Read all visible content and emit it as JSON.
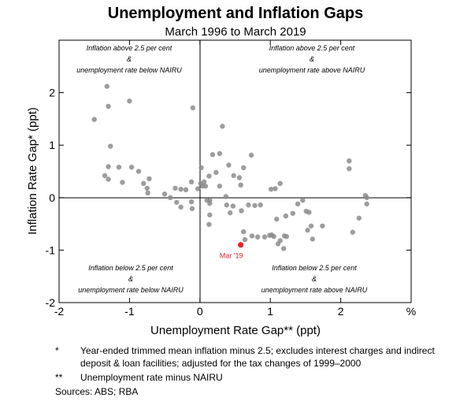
{
  "chart_data": {
    "type": "scatter",
    "title": "Unemployment and Inflation Gaps",
    "subtitle": "March 1996 to March 2019",
    "xlabel": "Unemployment Rate Gap** (ppt)",
    "ylabel": "Inflation Rate Gap* (ppt)",
    "x_unit": "%",
    "xlim": [
      -2,
      3
    ],
    "ylim": [
      -2,
      3
    ],
    "x_ticks": [
      "-2",
      "-1",
      "0",
      "1",
      "2"
    ],
    "y_ticks": [
      "-2",
      "-1",
      "0",
      "1",
      "2"
    ],
    "grid": false,
    "point_color": "#8c8c8c",
    "highlight_color": "#e0242f",
    "quadrant_labels": {
      "top_left": [
        "Inflation above 2.5 per cent",
        "&",
        "unemployment rate below NAIRU"
      ],
      "top_right": [
        "Inflation above 2.5 per cent",
        "&",
        "unemployment rate above NAIRU"
      ],
      "bottom_left": [
        "Inflation below 2.5 per cent",
        "&",
        "unemployment rate below NAIRU"
      ],
      "bottom_right": [
        "Inflation below 2.5 per cent",
        "&",
        "unemployment rate above NAIRU"
      ]
    },
    "highlight": {
      "label": "Mar '19",
      "x": 0.58,
      "y": -0.9
    },
    "points": [
      [
        -1.32,
        2.12
      ],
      [
        -1.3,
        1.74
      ],
      [
        -1.0,
        1.84
      ],
      [
        -1.5,
        1.49
      ],
      [
        -1.27,
        0.98
      ],
      [
        -0.1,
        1.71
      ],
      [
        -1.35,
        0.42
      ],
      [
        -1.3,
        0.35
      ],
      [
        -1.15,
        0.58
      ],
      [
        -1.3,
        0.59
      ],
      [
        -1.1,
        0.29
      ],
      [
        -0.97,
        0.58
      ],
      [
        -0.87,
        0.5
      ],
      [
        -0.8,
        0.27
      ],
      [
        -0.72,
        0.36
      ],
      [
        -0.75,
        0.18
      ],
      [
        -0.74,
        0.09
      ],
      [
        -0.5,
        0.07
      ],
      [
        -0.42,
        0.0
      ],
      [
        -0.35,
        0.18
      ],
      [
        -0.27,
        0.16
      ],
      [
        -0.2,
        0.15
      ],
      [
        -0.12,
        0.3
      ],
      [
        -0.03,
        0.17
      ],
      [
        0.01,
        0.27
      ],
      [
        0.04,
        0.22
      ],
      [
        0.02,
        0.57
      ],
      [
        0.06,
        0.3
      ],
      [
        0.08,
        0.22
      ],
      [
        0.14,
        -0.05
      ],
      [
        0.1,
        -0.05
      ],
      [
        -0.33,
        -0.09
      ],
      [
        -0.27,
        -0.18
      ],
      [
        -0.12,
        -0.08
      ],
      [
        -0.11,
        -0.21
      ],
      [
        0.14,
        -0.11
      ],
      [
        0.14,
        -0.33
      ],
      [
        0.13,
        0.41
      ],
      [
        0.18,
        0.82
      ],
      [
        0.28,
        0.84
      ],
      [
        0.32,
        1.36
      ],
      [
        0.23,
        0.48
      ],
      [
        0.28,
        0.22
      ],
      [
        0.37,
        0.02
      ],
      [
        0.41,
        0.62
      ],
      [
        0.48,
        0.42
      ],
      [
        0.56,
        0.38
      ],
      [
        0.62,
        0.57
      ],
      [
        0.73,
        0.81
      ],
      [
        0.58,
        0.24
      ],
      [
        0.38,
        -0.14
      ],
      [
        0.43,
        -0.29
      ],
      [
        0.47,
        -0.16
      ],
      [
        0.59,
        -0.25
      ],
      [
        0.69,
        -0.14
      ],
      [
        0.78,
        -0.15
      ],
      [
        0.86,
        -0.14
      ],
      [
        0.13,
        -0.51
      ],
      [
        0.62,
        -0.65
      ],
      [
        0.64,
        -0.8
      ],
      [
        0.74,
        -0.73
      ],
      [
        0.82,
        -0.75
      ],
      [
        0.92,
        -0.75
      ],
      [
        0.99,
        -0.72
      ],
      [
        1.02,
        -0.71
      ],
      [
        1.05,
        -0.74
      ],
      [
        1.11,
        -0.88
      ],
      [
        1.14,
        -0.82
      ],
      [
        1.19,
        -0.97
      ],
      [
        1.2,
        -0.73
      ],
      [
        1.23,
        -0.74
      ],
      [
        1.01,
        0.16
      ],
      [
        1.07,
        0.17
      ],
      [
        1.14,
        0.27
      ],
      [
        1.09,
        -0.41
      ],
      [
        1.22,
        -0.35
      ],
      [
        1.32,
        -0.3
      ],
      [
        1.39,
        -0.12
      ],
      [
        1.46,
        -0.05
      ],
      [
        1.51,
        -0.26
      ],
      [
        1.55,
        -0.28
      ],
      [
        1.53,
        -0.62
      ],
      [
        1.58,
        -0.54
      ],
      [
        1.6,
        -0.79
      ],
      [
        1.74,
        -0.54
      ],
      [
        2.12,
        0.7
      ],
      [
        2.12,
        0.55
      ],
      [
        2.17,
        -0.66
      ],
      [
        2.26,
        -0.39
      ],
      [
        2.35,
        0.04
      ],
      [
        2.37,
        0.0
      ],
      [
        2.37,
        -0.12
      ]
    ]
  },
  "notes": [
    {
      "mark": "*",
      "text": "Year-ended trimmed mean inflation minus 2.5; excludes interest charges and indirect deposit & loan facilities; adjusted for the tax changes of 1999–2000"
    },
    {
      "mark": "**",
      "text": "Unemployment rate minus NAIRU"
    }
  ],
  "sources": "Sources:  ABS; RBA"
}
